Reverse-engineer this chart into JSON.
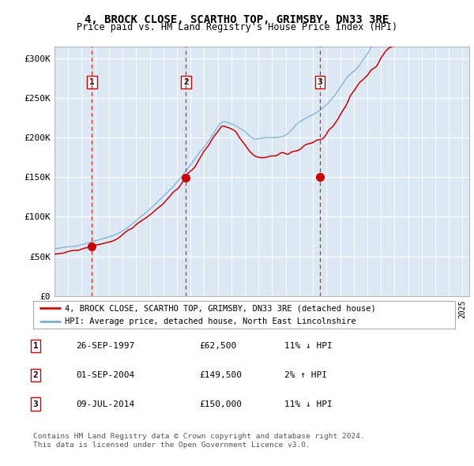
{
  "title": "4, BROCK CLOSE, SCARTHO TOP, GRIMSBY, DN33 3RE",
  "subtitle": "Price paid vs. HM Land Registry's House Price Index (HPI)",
  "bg_color": "#dce9f5",
  "sale_dates": [
    "1997-09-26",
    "2004-09-01",
    "2014-07-09"
  ],
  "sale_prices": [
    62500,
    149500,
    150000
  ],
  "sale_labels": [
    "1",
    "2",
    "3"
  ],
  "legend_line1": "4, BROCK CLOSE, SCARTHO TOP, GRIMSBY, DN33 3RE (detached house)",
  "legend_line2": "HPI: Average price, detached house, North East Lincolnshire",
  "table_rows": [
    [
      "1",
      "26-SEP-1997",
      "£62,500",
      "11% ↓ HPI"
    ],
    [
      "2",
      "01-SEP-2004",
      "£149,500",
      "2% ↑ HPI"
    ],
    [
      "3",
      "09-JUL-2014",
      "£150,000",
      "11% ↓ HPI"
    ]
  ],
  "footer": "Contains HM Land Registry data © Crown copyright and database right 2024.\nThis data is licensed under the Open Government Licence v3.0.",
  "ylabel_ticks": [
    "£0",
    "£50K",
    "£100K",
    "£150K",
    "£200K",
    "£250K",
    "£300K"
  ],
  "ytick_values": [
    0,
    50000,
    100000,
    150000,
    200000,
    250000,
    300000
  ],
  "ylim": [
    0,
    315000
  ],
  "red_line_color": "#cc0000",
  "blue_line_color": "#7aafd4",
  "dashed_line_color": "#dd0000",
  "marker_color": "#cc0000",
  "start_year": 1995,
  "end_year": 2025
}
